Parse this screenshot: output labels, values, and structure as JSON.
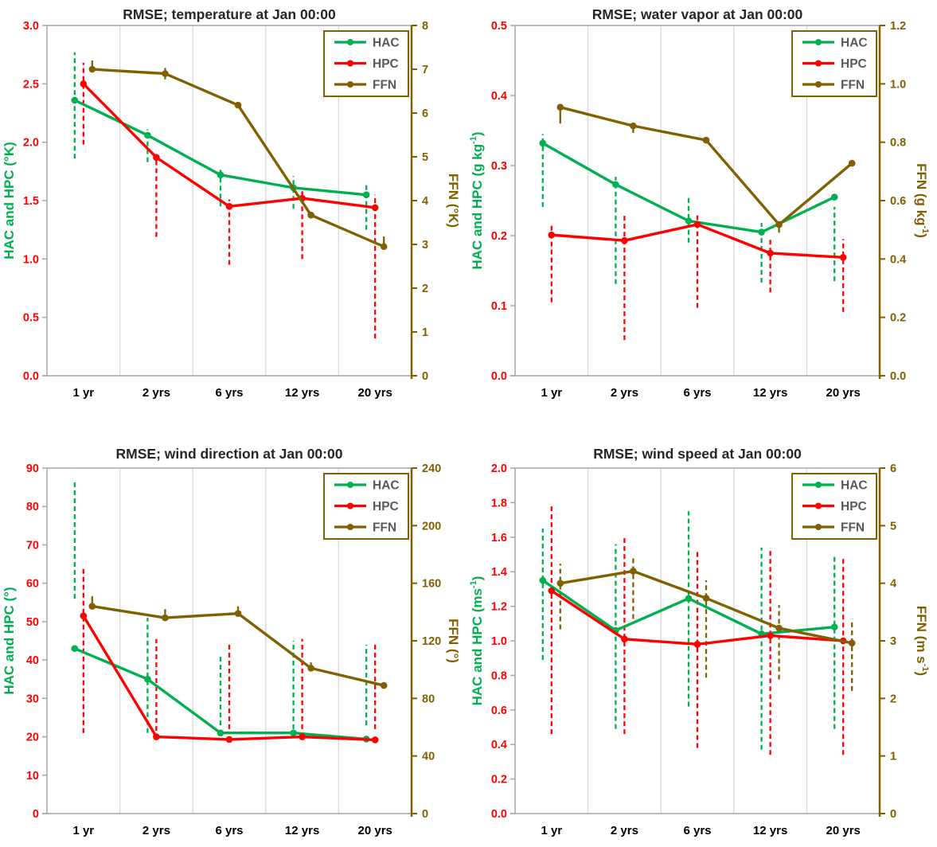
{
  "colors": {
    "hac": "#00B050",
    "hpc": "#FF0000",
    "ffn": "#806000",
    "left_tick_label": "#FF0000",
    "right_tick_label": "#806000",
    "grid_line": "#D9D9D9",
    "spine": "#A6A6A6",
    "legend_text": "#595959",
    "title_text": "#262626",
    "x_label": "#000000"
  },
  "legend": {
    "items": [
      "HAC",
      "HPC",
      "FFN"
    ]
  },
  "chart_data": [
    {
      "type": "line",
      "title": "RMSE; temperature at Jan 00:00",
      "categories": [
        "1 yr",
        "2 yrs",
        "6 yrs",
        "12 yrs",
        "20 yrs"
      ],
      "grid": "vertical-only",
      "legend_position": "top-right",
      "left_axis": {
        "label": "HAC and HPC (°K)",
        "segments": [
          {
            "t": "HAC and HPC (°K)"
          }
        ],
        "min": 0,
        "max": 3,
        "ticks": [
          "3.0",
          "2.5",
          "2.0",
          "1.5",
          "1.0",
          "0.5",
          "0.0"
        ]
      },
      "right_axis": {
        "label": "FFN (°K)",
        "segments": [
          {
            "t": "FFN (°K)"
          }
        ],
        "min": 0,
        "max": 8,
        "ticks": [
          "8",
          "7",
          "6",
          "5",
          "4",
          "3",
          "2",
          "1",
          "0"
        ]
      },
      "series": [
        {
          "name": "HAC",
          "axis": "left",
          "color_key": "hac",
          "err_style": "dashed",
          "values": [
            2.36,
            2.06,
            1.72,
            1.61,
            1.55
          ],
          "error_bars": [
            [
              1.86,
              2.77
            ],
            [
              1.83,
              2.11
            ],
            [
              1.45,
              1.79
            ],
            [
              1.43,
              1.71
            ],
            [
              1.25,
              1.64
            ]
          ]
        },
        {
          "name": "HPC",
          "axis": "left",
          "color_key": "hpc",
          "err_style": "dashed",
          "values": [
            2.5,
            1.87,
            1.45,
            1.52,
            1.44
          ],
          "error_bars": [
            [
              1.98,
              2.68
            ],
            [
              1.19,
              1.85
            ],
            [
              0.95,
              1.51
            ],
            [
              1.0,
              1.58
            ],
            [
              0.32,
              1.55
            ]
          ]
        },
        {
          "name": "FFN",
          "axis": "right",
          "color_key": "ffn",
          "err_style": "solid",
          "values": [
            7.0,
            6.9,
            6.18,
            3.67,
            2.95
          ],
          "error_bars": [
            [
              7.0,
              7.2
            ],
            [
              6.77,
              7.03
            ],
            null,
            null,
            [
              2.95,
              3.18
            ]
          ]
        }
      ]
    },
    {
      "type": "line",
      "title": "RMSE; water vapor at Jan 00:00",
      "categories": [
        "1 yr",
        "2 yrs",
        "6 yrs",
        "12 yrs",
        "20 yrs"
      ],
      "grid": "vertical-only",
      "legend_position": "top-right",
      "left_axis": {
        "label": "HAC and HPC (g kg-1)",
        "segments": [
          {
            "t": "HAC and HPC (g kg"
          },
          {
            "t": "-1",
            "sup": true
          },
          {
            "t": ")"
          }
        ],
        "min": 0,
        "max": 0.5,
        "ticks": [
          "0.5",
          "0.4",
          "0.3",
          "0.2",
          "0.1",
          "0.0"
        ]
      },
      "right_axis": {
        "label": "FFN (g kg-1)",
        "segments": [
          {
            "t": "FFN (g kg"
          },
          {
            "t": "-1",
            "sup": true
          },
          {
            "t": ")"
          }
        ],
        "min": 0,
        "max": 1.2,
        "ticks": [
          "1.2",
          "1.0",
          "0.8",
          "0.6",
          "0.4",
          "0.2",
          "0.0"
        ]
      },
      "series": [
        {
          "name": "HAC",
          "axis": "left",
          "color_key": "hac",
          "err_style": "dashed",
          "values": [
            0.332,
            0.273,
            0.221,
            0.205,
            0.255
          ],
          "error_bars": [
            [
              0.241,
              0.345
            ],
            [
              0.131,
              0.284
            ],
            [
              0.19,
              0.256
            ],
            [
              0.133,
              0.218
            ],
            [
              0.135,
              0.241
            ]
          ]
        },
        {
          "name": "HPC",
          "axis": "left",
          "color_key": "hpc",
          "err_style": "dashed",
          "values": [
            0.201,
            0.193,
            0.216,
            0.175,
            0.169
          ],
          "error_bars": [
            [
              0.105,
              0.215
            ],
            [
              0.051,
              0.23
            ],
            [
              0.097,
              0.232
            ],
            [
              0.119,
              0.195
            ],
            [
              0.091,
              0.195
            ]
          ]
        },
        {
          "name": "FFN",
          "axis": "right",
          "color_key": "ffn",
          "err_style": "solid",
          "values": [
            0.92,
            0.856,
            0.807,
            0.518,
            0.728
          ],
          "error_bars": [
            [
              0.864,
              0.92
            ],
            [
              0.832,
              0.856
            ],
            null,
            [
              0.49,
              0.518
            ],
            null
          ]
        }
      ]
    },
    {
      "type": "line",
      "title": "RMSE; wind direction at Jan 00:00",
      "categories": [
        "1 yr",
        "2 yrs",
        "6 yrs",
        "12 yrs",
        "20 yrs"
      ],
      "grid": "vertical-only",
      "legend_position": "top-right",
      "left_axis": {
        "label": "HAC and HPC (°)",
        "segments": [
          {
            "t": "HAC and HPC (°)"
          }
        ],
        "min": 0,
        "max": 90,
        "ticks": [
          "90",
          "80",
          "70",
          "60",
          "50",
          "40",
          "30",
          "20",
          "10",
          "0"
        ]
      },
      "right_axis": {
        "label": "FFN (°)",
        "segments": [
          {
            "t": "FFN (°)"
          }
        ],
        "min": 0,
        "max": 240,
        "ticks": [
          "240",
          "200",
          "160",
          "120",
          "80",
          "40",
          "0"
        ]
      },
      "series": [
        {
          "name": "HAC",
          "axis": "left",
          "color_key": "hac",
          "err_style": "dashed",
          "values": [
            43,
            35,
            21,
            21,
            19.4
          ],
          "error_bars": [
            [
              56,
              87
            ],
            [
              21,
              51
            ],
            [
              23,
              41
            ],
            [
              22,
              45
            ],
            [
              23,
              44
            ]
          ]
        },
        {
          "name": "HPC",
          "axis": "left",
          "color_key": "hpc",
          "err_style": "dashed",
          "values": [
            51.5,
            20,
            19.3,
            20,
            19.2
          ],
          "error_bars": [
            [
              21,
              64
            ],
            [
              19.5,
              45.5
            ],
            [
              22,
              44
            ],
            [
              22,
              45.5
            ],
            [
              22,
              44.5
            ]
          ]
        },
        {
          "name": "FFN",
          "axis": "right",
          "color_key": "ffn",
          "err_style": "solid",
          "values": [
            144,
            136,
            139,
            101,
            89
          ],
          "error_bars": [
            [
              144,
              151
            ],
            [
              136,
              142
            ],
            [
              139,
              144
            ],
            [
              101,
              105
            ],
            null
          ]
        }
      ]
    },
    {
      "type": "line",
      "title": "RMSE; wind speed at Jan 00:00",
      "categories": [
        "1 yr",
        "2 yrs",
        "6 yrs",
        "12 yrs",
        "20 yrs"
      ],
      "grid": "vertical-only",
      "legend_position": "top-right",
      "left_axis": {
        "label": "HAC and HPC (ms-1)",
        "segments": [
          {
            "t": "HAC and HPC (ms"
          },
          {
            "t": "-1",
            "sup": true
          },
          {
            "t": ")"
          }
        ],
        "min": 0,
        "max": 2,
        "ticks": [
          "2.0",
          "1.8",
          "1.6",
          "1.4",
          "1.2",
          "1.0",
          "0.8",
          "0.6",
          "0.4",
          "0.2",
          "0.0"
        ]
      },
      "right_axis": {
        "label": "FFN (m s-1)",
        "segments": [
          {
            "t": "FFN (m s"
          },
          {
            "t": "-1",
            "sup": true
          },
          {
            "t": ")"
          }
        ],
        "min": 0,
        "max": 6,
        "ticks": [
          "6",
          "5",
          "4",
          "3",
          "2",
          "1",
          "0"
        ]
      },
      "series": [
        {
          "name": "HAC",
          "axis": "left",
          "color_key": "hac",
          "err_style": "dashed",
          "values": [
            1.35,
            1.06,
            1.245,
            1.04,
            1.08
          ],
          "error_bars": [
            [
              0.89,
              1.65
            ],
            [
              0.49,
              1.56
            ],
            [
              0.62,
              1.75
            ],
            [
              0.37,
              1.54
            ],
            [
              0.49,
              1.5
            ]
          ]
        },
        {
          "name": "HPC",
          "axis": "left",
          "color_key": "hpc",
          "err_style": "dashed",
          "values": [
            1.29,
            1.01,
            0.98,
            1.03,
            1.0
          ],
          "error_bars": [
            [
              0.46,
              1.79
            ],
            [
              0.46,
              1.61
            ],
            [
              0.38,
              1.52
            ],
            [
              0.34,
              1.54
            ],
            [
              0.34,
              1.48
            ]
          ]
        },
        {
          "name": "FFN",
          "axis": "right",
          "color_key": "ffn",
          "err_style": "dashed",
          "values": [
            4.0,
            4.21,
            3.74,
            3.22,
            2.96
          ],
          "error_bars": [
            [
              3.2,
              4.34
            ],
            [
              3.38,
              4.44
            ],
            [
              2.36,
              4.05
            ],
            [
              2.33,
              3.62
            ],
            [
              2.13,
              3.38
            ]
          ]
        }
      ]
    }
  ]
}
